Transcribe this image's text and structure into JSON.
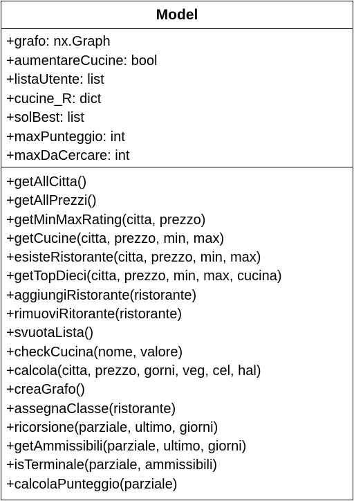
{
  "class_name": "Model",
  "attributes": [
    "+grafo: nx.Graph",
    "+aumentareCucine: bool",
    "+listaUtente: list",
    "+cucine_R: dict",
    "+solBest: list",
    "+maxPunteggio: int",
    "+maxDaCercare: int"
  ],
  "operations": [
    "+getAllCitta()",
    "+getAllPrezzi()",
    "+getMinMaxRating(citta, prezzo)",
    "+getCucine(citta, prezzo, min, max)",
    "+esisteRistorante(citta, prezzo, min, max)",
    "+getTopDieci(citta, prezzo, min, max, cucina)",
    "+aggiungiRistorante(ristorante)",
    "+rimuoviRitorante(ristorante)",
    "+svuotaLista()",
    "+checkCucina(nome, valore)",
    "+calcola(citta, prezzo, gorni, veg, cel, hal)",
    "+creaGrafo()",
    "+assegnaClasse(ristorante)",
    "+ricorsione(parziale, ultimo, giorni)",
    "+getAmmissibili(parziale, ultimo, giorni)",
    "+isTerminale(parziale, ammissibili)",
    "+calcolaPunteggio(parziale)"
  ]
}
